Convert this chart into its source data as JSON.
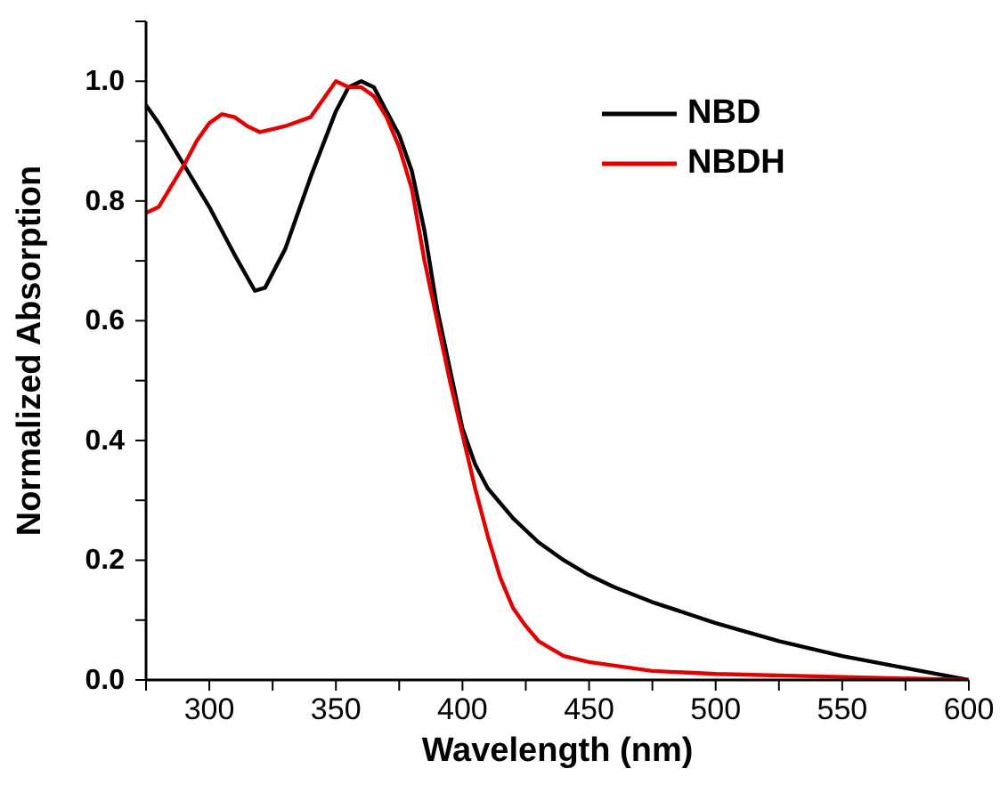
{
  "chart_data": {
    "type": "line",
    "xlabel": "Wavelength (nm)",
    "ylabel": "Normalized Absorption",
    "xlim": [
      275,
      600
    ],
    "ylim": [
      0,
      1.1
    ],
    "xticks": [
      {
        "value": 275,
        "label": null
      },
      300,
      {
        "value": 325,
        "label": null
      },
      350,
      {
        "value": 375,
        "label": null
      },
      400,
      {
        "value": 425,
        "label": null
      },
      450,
      {
        "value": 475,
        "label": null
      },
      500,
      {
        "value": 525,
        "label": null
      },
      550,
      {
        "value": 575,
        "label": null
      },
      600
    ],
    "yticks": [
      {
        "value": 0,
        "label": "0.0"
      },
      {
        "value": 0.1,
        "label": null
      },
      0.2,
      {
        "value": 0.3,
        "label": null
      },
      0.4,
      {
        "value": 0.5,
        "label": null
      },
      0.6,
      {
        "value": 0.7,
        "label": null
      },
      0.8,
      {
        "value": 0.9,
        "label": null
      },
      {
        "value": 1,
        "label": "1.0"
      },
      {
        "value": 1.1,
        "label": null
      }
    ],
    "grid": false,
    "legend": "top right",
    "marker": "none",
    "line_style": "solid",
    "series": [
      {
        "name": "NBD",
        "color": "#000000",
        "x": [
          275,
          280,
          290,
          300,
          310,
          318,
          322,
          330,
          340,
          350,
          355,
          360,
          365,
          370,
          375,
          380,
          385,
          390,
          395,
          400,
          405,
          410,
          420,
          430,
          440,
          450,
          460,
          475,
          500,
          525,
          550,
          575,
          600
        ],
        "values": [
          0.96,
          0.93,
          0.86,
          0.79,
          0.71,
          0.65,
          0.655,
          0.72,
          0.84,
          0.95,
          0.99,
          1.0,
          0.99,
          0.95,
          0.91,
          0.85,
          0.75,
          0.62,
          0.52,
          0.42,
          0.36,
          0.32,
          0.27,
          0.23,
          0.2,
          0.175,
          0.155,
          0.13,
          0.095,
          0.065,
          0.04,
          0.02,
          0.0
        ]
      },
      {
        "name": "NBDH",
        "color": "#e00000",
        "x": [
          275,
          280,
          290,
          295,
          300,
          305,
          310,
          315,
          320,
          325,
          330,
          340,
          345,
          350,
          355,
          360,
          365,
          370,
          375,
          380,
          385,
          390,
          395,
          400,
          405,
          410,
          415,
          420,
          425,
          430,
          440,
          450,
          475,
          500,
          550,
          600
        ],
        "values": [
          0.78,
          0.79,
          0.86,
          0.9,
          0.93,
          0.945,
          0.94,
          0.925,
          0.915,
          0.92,
          0.925,
          0.94,
          0.97,
          1.0,
          0.99,
          0.99,
          0.975,
          0.94,
          0.89,
          0.82,
          0.7,
          0.6,
          0.5,
          0.41,
          0.32,
          0.24,
          0.17,
          0.12,
          0.09,
          0.065,
          0.04,
          0.03,
          0.015,
          0.01,
          0.005,
          0.0
        ]
      }
    ]
  }
}
